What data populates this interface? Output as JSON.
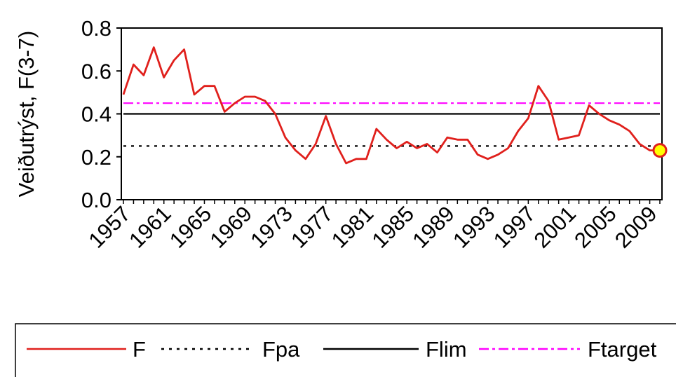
{
  "chart_data": {
    "type": "line",
    "title": "",
    "xlabel": "",
    "ylabel": "Veiðutrýst, F(3-7)",
    "ylim": [
      0.0,
      0.8
    ],
    "y_ticks": [
      "0.0",
      "0.2",
      "0.4",
      "0.6",
      "0.8"
    ],
    "x_ticks": [
      "1957",
      "1961",
      "1965",
      "1969",
      "1973",
      "1977",
      "1981",
      "1985",
      "1989",
      "1993",
      "1997",
      "2001",
      "2005",
      "2009"
    ],
    "xlim": [
      1957,
      2010
    ],
    "grid": false,
    "legend_position": "bottom",
    "series": [
      {
        "name": "F",
        "color": "#e0201c",
        "style": "solid",
        "x": [
          1957,
          1958,
          1959,
          1960,
          1961,
          1962,
          1963,
          1964,
          1965,
          1966,
          1967,
          1968,
          1969,
          1970,
          1971,
          1972,
          1973,
          1974,
          1975,
          1976,
          1977,
          1978,
          1979,
          1980,
          1981,
          1982,
          1983,
          1984,
          1985,
          1986,
          1987,
          1988,
          1989,
          1990,
          1991,
          1992,
          1993,
          1994,
          1995,
          1996,
          1997,
          1998,
          1999,
          2000,
          2001,
          2002,
          2003,
          2004,
          2005,
          2006,
          2007,
          2008,
          2009,
          2010
        ],
        "values": [
          0.49,
          0.63,
          0.58,
          0.71,
          0.57,
          0.65,
          0.7,
          0.49,
          0.53,
          0.53,
          0.41,
          0.45,
          0.48,
          0.48,
          0.46,
          0.4,
          0.29,
          0.23,
          0.19,
          0.26,
          0.39,
          0.26,
          0.17,
          0.19,
          0.19,
          0.33,
          0.28,
          0.24,
          0.27,
          0.24,
          0.26,
          0.22,
          0.29,
          0.28,
          0.28,
          0.21,
          0.19,
          0.21,
          0.24,
          0.32,
          0.38,
          0.53,
          0.46,
          0.28,
          0.29,
          0.3,
          0.44,
          0.4,
          0.37,
          0.35,
          0.32,
          0.26,
          0.23,
          0.23
        ]
      },
      {
        "name": "Fpa",
        "color": "#000000",
        "style": "dotted",
        "x": [
          1957,
          2010
        ],
        "values": [
          0.25,
          0.25
        ]
      },
      {
        "name": "Flim",
        "color": "#000000",
        "style": "solid",
        "x": [
          1957,
          2010
        ],
        "values": [
          0.4,
          0.4
        ]
      },
      {
        "name": "Ftarget",
        "color": "#ff00ff",
        "style": "dashdot",
        "x": [
          1957,
          2010
        ],
        "values": [
          0.45,
          0.45
        ]
      }
    ],
    "highlight_point": {
      "x": 2010,
      "y": 0.23,
      "fill": "#ffff00",
      "stroke": "#e0201c"
    }
  }
}
